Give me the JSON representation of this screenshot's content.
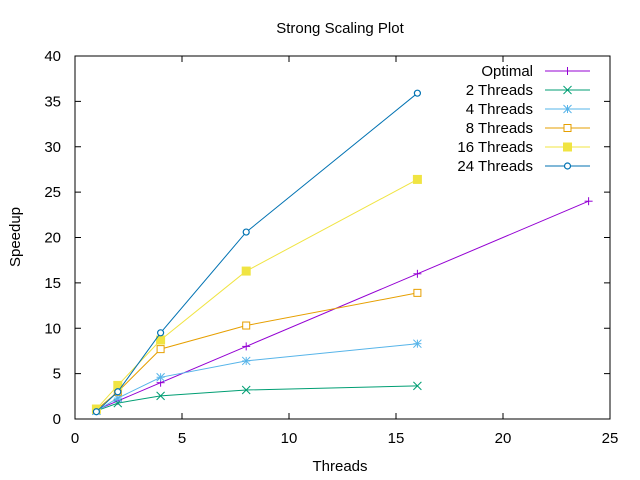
{
  "chart_data": {
    "type": "line",
    "title": "Strong Scaling Plot",
    "xlabel": "Threads",
    "ylabel": "Speedup",
    "xlim": [
      0,
      25
    ],
    "ylim": [
      0,
      40
    ],
    "xticks": [
      0,
      5,
      10,
      15,
      20,
      25
    ],
    "yticks": [
      0,
      5,
      10,
      15,
      20,
      25,
      30,
      35,
      40
    ],
    "grid": false,
    "legend_position": "top-right",
    "series": [
      {
        "name": "Optimal",
        "color": "#9400d3",
        "marker": "plus",
        "x": [
          1,
          2,
          4,
          8,
          16,
          24
        ],
        "y": [
          1,
          2,
          4,
          8,
          16,
          24
        ]
      },
      {
        "name": "2 Threads",
        "color": "#009e73",
        "marker": "cross",
        "x": [
          1,
          2,
          4,
          8,
          16
        ],
        "y": [
          0.9,
          1.75,
          2.55,
          3.2,
          3.65
        ]
      },
      {
        "name": "4 Threads",
        "color": "#56b4e9",
        "marker": "star",
        "x": [
          1,
          2,
          4,
          8,
          16
        ],
        "y": [
          0.9,
          2.3,
          4.6,
          6.4,
          8.3
        ]
      },
      {
        "name": "8 Threads",
        "color": "#e69f00",
        "marker": "square-open",
        "x": [
          1,
          2,
          4,
          8,
          16
        ],
        "y": [
          1.0,
          3.0,
          7.7,
          10.3,
          13.9
        ]
      },
      {
        "name": "16 Threads",
        "color": "#f0e442",
        "marker": "square-filled",
        "x": [
          1,
          2,
          4,
          8,
          16
        ],
        "y": [
          1.1,
          3.7,
          8.7,
          16.3,
          26.4
        ]
      },
      {
        "name": "24 Threads",
        "color": "#0072b2",
        "marker": "circle-open",
        "x": [
          1,
          2,
          4,
          8,
          16
        ],
        "y": [
          0.8,
          3.0,
          9.5,
          20.6,
          35.9
        ]
      }
    ]
  }
}
